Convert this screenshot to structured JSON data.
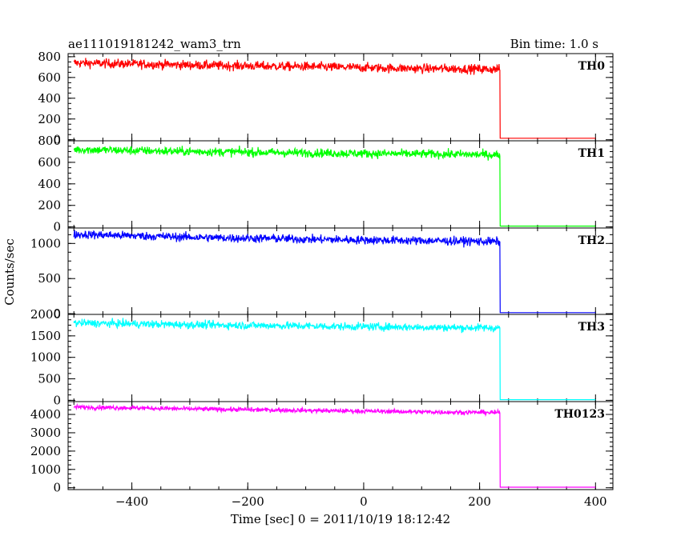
{
  "header": {
    "title": "ae111019181242_wam3_trn",
    "bin_time": "Bin time: 1.0 s"
  },
  "chart_data": {
    "type": "line",
    "title": "ae111019181242_wam3_trn",
    "bin_time_s": 1.0,
    "xlabel": "Time [sec] 0 = 2011/10/19 18:12:42",
    "ylabel": "Counts/sec",
    "xlim": [
      -510,
      430
    ],
    "xticks": [
      -400,
      -200,
      0,
      200,
      400
    ],
    "xtick_labels": [
      "−400",
      "−200",
      "0",
      "200",
      "400"
    ],
    "panels": [
      {
        "name": "TH0",
        "color": "#ff0000",
        "ylim": [
          -10,
          830
        ],
        "yticks": [
          0,
          200,
          400,
          600,
          800
        ],
        "ytick_labels": [
          "0",
          "200",
          "400",
          "600",
          "800"
        ],
        "series": {
          "x": [
            -500,
            -450,
            -400,
            -350,
            -300,
            -250,
            -200,
            -150,
            -100,
            -50,
            0,
            50,
            100,
            150,
            200,
            235,
            236,
            400
          ],
          "y": [
            740,
            735,
            730,
            725,
            720,
            715,
            712,
            708,
            705,
            700,
            695,
            690,
            685,
            685,
            680,
            680,
            15,
            15
          ]
        },
        "noise": 22
      },
      {
        "name": "TH1",
        "color": "#00ff00",
        "ylim": [
          -10,
          800
        ],
        "yticks": [
          0,
          200,
          400,
          600,
          800
        ],
        "ytick_labels": [
          "0",
          "200",
          "400",
          "600",
          "800"
        ],
        "series": {
          "x": [
            -500,
            -450,
            -400,
            -350,
            -300,
            -250,
            -200,
            -150,
            -100,
            -50,
            0,
            50,
            100,
            150,
            200,
            235,
            236,
            400
          ],
          "y": [
            720,
            715,
            710,
            705,
            700,
            698,
            695,
            690,
            688,
            685,
            682,
            680,
            678,
            675,
            672,
            670,
            8,
            8
          ]
        },
        "noise": 20
      },
      {
        "name": "TH2",
        "color": "#0000ff",
        "ylim": [
          -10,
          1220
        ],
        "yticks": [
          0,
          500,
          1000
        ],
        "ytick_labels": [
          "0",
          "500",
          "1000"
        ],
        "series": {
          "x": [
            -500,
            -450,
            -400,
            -350,
            -300,
            -250,
            -200,
            -150,
            -100,
            -50,
            0,
            50,
            100,
            150,
            200,
            235,
            236,
            400
          ],
          "y": [
            1130,
            1120,
            1110,
            1100,
            1090,
            1080,
            1075,
            1070,
            1060,
            1055,
            1050,
            1045,
            1040,
            1035,
            1030,
            1025,
            15,
            15
          ]
        },
        "noise": 30
      },
      {
        "name": "TH3",
        "color": "#00ffff",
        "ylim": [
          -30,
          2000
        ],
        "yticks": [
          0,
          500,
          1000,
          1500,
          2000
        ],
        "ytick_labels": [
          "0",
          "500",
          "1000",
          "1500",
          "2000"
        ],
        "series": {
          "x": [
            -500,
            -450,
            -400,
            -350,
            -300,
            -250,
            -200,
            -150,
            -100,
            -50,
            0,
            50,
            100,
            150,
            200,
            235,
            236,
            400
          ],
          "y": [
            1800,
            1790,
            1780,
            1770,
            1760,
            1750,
            1745,
            1740,
            1730,
            1720,
            1715,
            1710,
            1700,
            1695,
            1690,
            1685,
            15,
            15
          ]
        },
        "noise": 45
      },
      {
        "name": "TH0123",
        "color": "#ff00ff",
        "ylim": [
          -100,
          4700
        ],
        "yticks": [
          0,
          1000,
          2000,
          3000,
          4000
        ],
        "ytick_labels": [
          "0",
          "1000",
          "2000",
          "3000",
          "4000"
        ],
        "series": {
          "x": [
            -500,
            -450,
            -400,
            -350,
            -300,
            -250,
            -200,
            -150,
            -100,
            -50,
            0,
            50,
            100,
            150,
            200,
            235,
            236,
            400
          ],
          "y": [
            4400,
            4380,
            4360,
            4330,
            4300,
            4280,
            4260,
            4240,
            4220,
            4200,
            4180,
            4160,
            4140,
            4120,
            4110,
            4100,
            30,
            30
          ]
        },
        "noise": 60
      }
    ]
  }
}
